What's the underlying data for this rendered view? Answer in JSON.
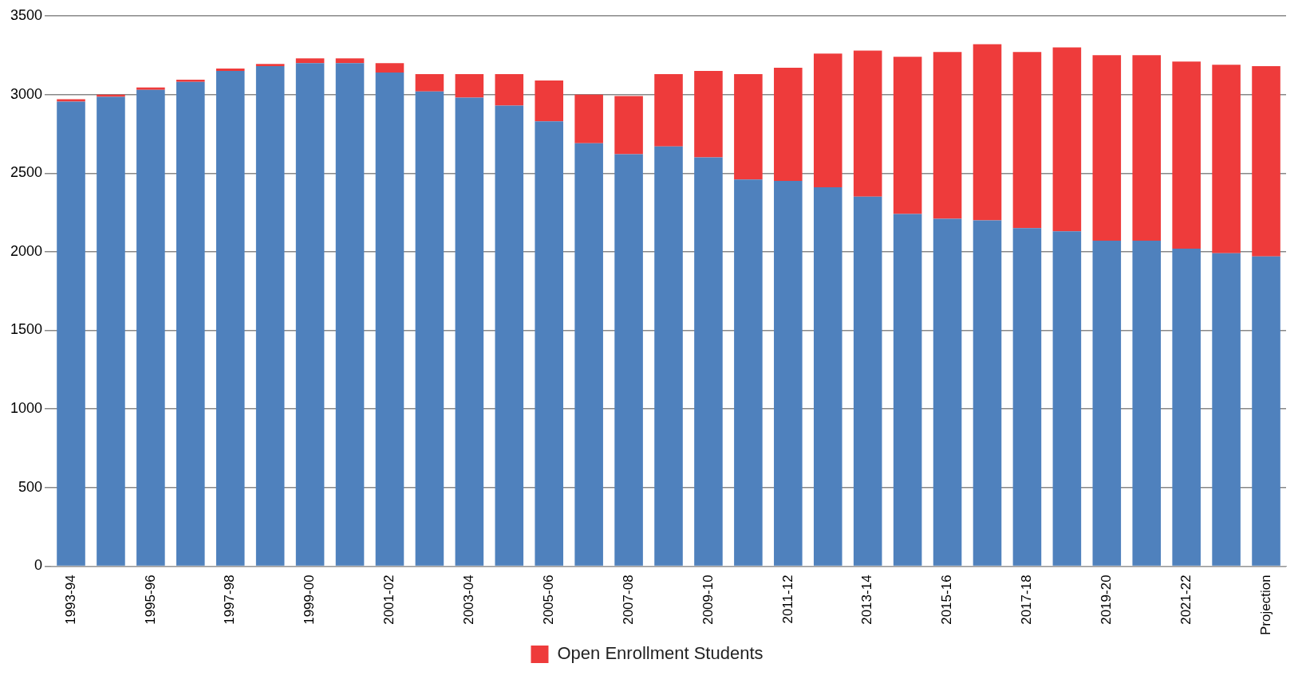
{
  "chart_data": {
    "type": "bar",
    "stacked": true,
    "categories": [
      "1993-94",
      null,
      "1995-96",
      null,
      "1997-98",
      null,
      "1999-00",
      null,
      "2001-02",
      null,
      "2003-04",
      null,
      "2005-06",
      null,
      "2007-08",
      null,
      "2009-10",
      null,
      "2011-12",
      null,
      "2013-14",
      null,
      "2015-16",
      null,
      "2017-18",
      null,
      "2019-20",
      null,
      "2021-22",
      null,
      "Projection"
    ],
    "series": [
      {
        "color": "#4f81bd",
        "values": [
          2955,
          2985,
          3030,
          3080,
          3150,
          3180,
          3200,
          3200,
          3140,
          3020,
          2980,
          2930,
          2830,
          2690,
          2620,
          2670,
          2600,
          2460,
          2450,
          2410,
          2350,
          2240,
          2210,
          2200,
          2150,
          2130,
          2070,
          2070,
          2020,
          1990,
          1970
        ]
      },
      {
        "name": "Open Enrollment Students",
        "color": "#ee3b3b",
        "values": [
          15,
          15,
          15,
          15,
          15,
          15,
          30,
          30,
          60,
          110,
          150,
          200,
          260,
          310,
          370,
          460,
          550,
          670,
          720,
          850,
          930,
          1000,
          1060,
          1120,
          1120,
          1170,
          1180,
          1180,
          1190,
          1200,
          1210
        ]
      }
    ],
    "ylim": [
      0,
      3500
    ],
    "yticks": [
      0,
      500,
      1000,
      1500,
      2000,
      2500,
      3000,
      3500
    ],
    "grid": "y",
    "legend": "bottom"
  }
}
